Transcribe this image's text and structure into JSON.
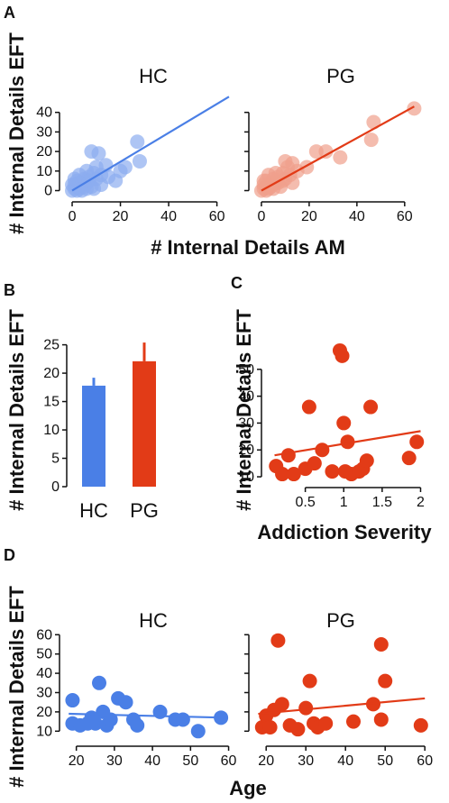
{
  "colors": {
    "hc": "#4a7fe6",
    "pg": "#e23b17",
    "hc_light": "#8cacf0",
    "pg_light": "#f0a08c"
  },
  "panelA": {
    "letter": "A",
    "ylabel": "# Internal Details EFT",
    "xlabel": "# Internal Details AM",
    "hc_title": "HC",
    "pg_title": "PG"
  },
  "panelB": {
    "letter": "B",
    "ylabel": "# Internal Details EFT",
    "cat_hc": "HC",
    "cat_pg": "PG"
  },
  "panelC": {
    "letter": "C",
    "ylabel": "# Internal Details EFT",
    "xlabel": "Addiction Severity"
  },
  "panelD": {
    "letter": "D",
    "ylabel": "# Internal Details EFT",
    "xlabel": "Age",
    "hc_title": "HC",
    "pg_title": "PG"
  },
  "chart_data": [
    {
      "id": "A-HC",
      "type": "scatter",
      "title": "HC",
      "xlabel": "# Internal Details AM",
      "ylabel": "# Internal Details EFT",
      "xlim": [
        -3,
        68
      ],
      "ylim": [
        -3,
        50
      ],
      "xticks": [
        0,
        20,
        40,
        60
      ],
      "yticks": [
        0,
        10,
        20,
        30,
        40
      ],
      "points": [
        [
          0,
          0
        ],
        [
          1,
          1
        ],
        [
          2,
          2
        ],
        [
          1,
          3
        ],
        [
          3,
          1
        ],
        [
          2,
          5
        ],
        [
          4,
          3
        ],
        [
          5,
          6
        ],
        [
          3,
          8
        ],
        [
          6,
          4
        ],
        [
          7,
          7
        ],
        [
          8,
          2
        ],
        [
          6,
          10
        ],
        [
          9,
          9
        ],
        [
          10,
          6
        ],
        [
          12,
          8
        ],
        [
          10,
          12
        ],
        [
          8,
          20
        ],
        [
          11,
          19
        ],
        [
          14,
          13
        ],
        [
          15,
          7
        ],
        [
          18,
          5
        ],
        [
          20,
          10
        ],
        [
          22,
          12
        ],
        [
          27,
          25
        ],
        [
          28,
          15
        ],
        [
          5,
          2
        ],
        [
          4,
          0
        ],
        [
          2,
          0
        ],
        [
          7,
          5
        ],
        [
          9,
          1
        ],
        [
          12,
          3
        ],
        [
          3,
          4
        ],
        [
          6,
          1
        ],
        [
          1,
          6
        ],
        [
          0,
          3
        ]
      ],
      "fit": [
        [
          0,
          0
        ],
        [
          65,
          48
        ]
      ]
    },
    {
      "id": "A-PG",
      "type": "scatter",
      "title": "PG",
      "xlabel": "# Internal Details AM",
      "ylabel": "# Internal Details EFT",
      "xlim": [
        -3,
        68
      ],
      "ylim": [
        -3,
        50
      ],
      "xticks": [
        0,
        20,
        40,
        60
      ],
      "yticks": [
        0,
        10,
        20,
        30,
        40
      ],
      "points": [
        [
          0,
          0
        ],
        [
          1,
          1
        ],
        [
          2,
          2
        ],
        [
          1,
          3
        ],
        [
          3,
          1
        ],
        [
          2,
          5
        ],
        [
          4,
          3
        ],
        [
          5,
          6
        ],
        [
          3,
          8
        ],
        [
          6,
          4
        ],
        [
          7,
          7
        ],
        [
          8,
          2
        ],
        [
          9,
          9
        ],
        [
          10,
          6
        ],
        [
          12,
          8
        ],
        [
          11,
          12
        ],
        [
          10,
          15
        ],
        [
          13,
          14
        ],
        [
          15,
          10
        ],
        [
          19,
          12
        ],
        [
          23,
          20
        ],
        [
          27,
          20
        ],
        [
          33,
          17
        ],
        [
          46,
          26
        ],
        [
          47,
          35
        ],
        [
          64,
          42
        ],
        [
          5,
          1
        ],
        [
          2,
          0
        ],
        [
          7,
          4
        ],
        [
          4,
          2
        ],
        [
          9,
          5
        ],
        [
          13,
          4
        ],
        [
          6,
          9
        ],
        [
          1,
          5
        ]
      ],
      "fit": [
        [
          0,
          0
        ],
        [
          64,
          43
        ]
      ]
    },
    {
      "id": "B",
      "type": "bar",
      "ylabel": "# Internal Details EFT",
      "categories": [
        "HC",
        "PG"
      ],
      "values": [
        17.8,
        22.1
      ],
      "errors": [
        1.4,
        3.3
      ],
      "ylim": [
        0,
        27
      ],
      "yticks": [
        0,
        5,
        10,
        15,
        20,
        25
      ]
    },
    {
      "id": "C",
      "type": "scatter",
      "xlabel": "Addiction Severity",
      "ylabel": "# Internal Details EFT",
      "xlim": [
        0,
        2.1
      ],
      "ylim": [
        8,
        60
      ],
      "xticks": [
        0.5,
        1.0,
        1.5,
        2.0
      ],
      "yticks": [
        10,
        20,
        30,
        40,
        50
      ],
      "points": [
        [
          0.12,
          14
        ],
        [
          0.2,
          11
        ],
        [
          0.28,
          18
        ],
        [
          0.35,
          11
        ],
        [
          0.5,
          13
        ],
        [
          0.55,
          36
        ],
        [
          0.62,
          15
        ],
        [
          0.72,
          20
        ],
        [
          0.85,
          12
        ],
        [
          0.95,
          57
        ],
        [
          0.98,
          55
        ],
        [
          1.0,
          30
        ],
        [
          1.02,
          12
        ],
        [
          1.05,
          23
        ],
        [
          1.1,
          11
        ],
        [
          1.2,
          12
        ],
        [
          1.25,
          13
        ],
        [
          1.35,
          36
        ],
        [
          1.3,
          16
        ],
        [
          1.85,
          17
        ],
        [
          1.95,
          23
        ]
      ],
      "fit": [
        [
          0.1,
          18
        ],
        [
          2.0,
          27
        ]
      ]
    },
    {
      "id": "D-HC",
      "type": "scatter",
      "title": "HC",
      "xlabel": "Age",
      "ylabel": "# Internal Details EFT",
      "xlim": [
        17,
        62
      ],
      "ylim": [
        5,
        62
      ],
      "xticks": [
        20,
        30,
        40,
        50,
        60
      ],
      "yticks": [
        10,
        20,
        30,
        40,
        50,
        60
      ],
      "points": [
        [
          19,
          26
        ],
        [
          19,
          14
        ],
        [
          21,
          13
        ],
        [
          23,
          14
        ],
        [
          24,
          17
        ],
        [
          26,
          35
        ],
        [
          25,
          14
        ],
        [
          27,
          20
        ],
        [
          28,
          13
        ],
        [
          29,
          16
        ],
        [
          31,
          27
        ],
        [
          33,
          25
        ],
        [
          35,
          16
        ],
        [
          36,
          13
        ],
        [
          42,
          20
        ],
        [
          46,
          16
        ],
        [
          48,
          16
        ],
        [
          52,
          10
        ],
        [
          58,
          17
        ]
      ],
      "fit": [
        [
          18,
          19
        ],
        [
          59,
          17
        ]
      ]
    },
    {
      "id": "D-PG",
      "type": "scatter",
      "title": "PG",
      "xlabel": "Age",
      "ylabel": "# Internal Details EFT",
      "xlim": [
        17,
        62
      ],
      "ylim": [
        5,
        62
      ],
      "xticks": [
        20,
        30,
        40,
        50,
        60
      ],
      "yticks": [
        10,
        20,
        30,
        40,
        50,
        60
      ],
      "points": [
        [
          19,
          12
        ],
        [
          20,
          18
        ],
        [
          21,
          12
        ],
        [
          22,
          21
        ],
        [
          23,
          57
        ],
        [
          24,
          24
        ],
        [
          26,
          13
        ],
        [
          28,
          11
        ],
        [
          30,
          22
        ],
        [
          31,
          36
        ],
        [
          32,
          14
        ],
        [
          33,
          12
        ],
        [
          35,
          14
        ],
        [
          42,
          15
        ],
        [
          47,
          24
        ],
        [
          49,
          55
        ],
        [
          50,
          36
        ],
        [
          49,
          16
        ],
        [
          59,
          13
        ]
      ],
      "fit": [
        [
          18,
          19
        ],
        [
          60,
          27
        ]
      ]
    }
  ]
}
